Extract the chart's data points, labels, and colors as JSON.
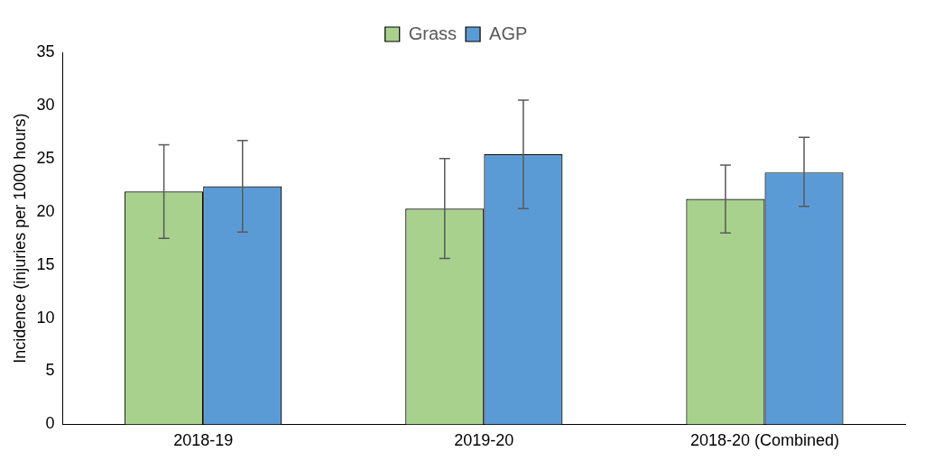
{
  "chart_data": {
    "type": "bar",
    "ylabel": "Incidence (injuries per 1000 hours)",
    "categories": [
      "2018-19",
      "2019-20",
      "2018-20 (Combined)"
    ],
    "series": [
      {
        "name": "Grass",
        "color": "#a9d18e",
        "values": [
          21.9,
          20.3,
          21.2
        ],
        "errors": [
          [
            17.5,
            26.3
          ],
          [
            15.6,
            25.0
          ],
          [
            18.0,
            24.4
          ]
        ]
      },
      {
        "name": "AGP",
        "color": "#5b9bd5",
        "values": [
          22.4,
          25.4,
          23.7
        ],
        "errors": [
          [
            18.1,
            26.7
          ],
          [
            20.3,
            30.5
          ],
          [
            20.5,
            27.0
          ]
        ]
      }
    ],
    "ylim": [
      0,
      35
    ],
    "yticks": [
      0,
      5,
      10,
      15,
      20,
      25,
      30,
      35
    ],
    "grid": false,
    "legend": "top"
  }
}
